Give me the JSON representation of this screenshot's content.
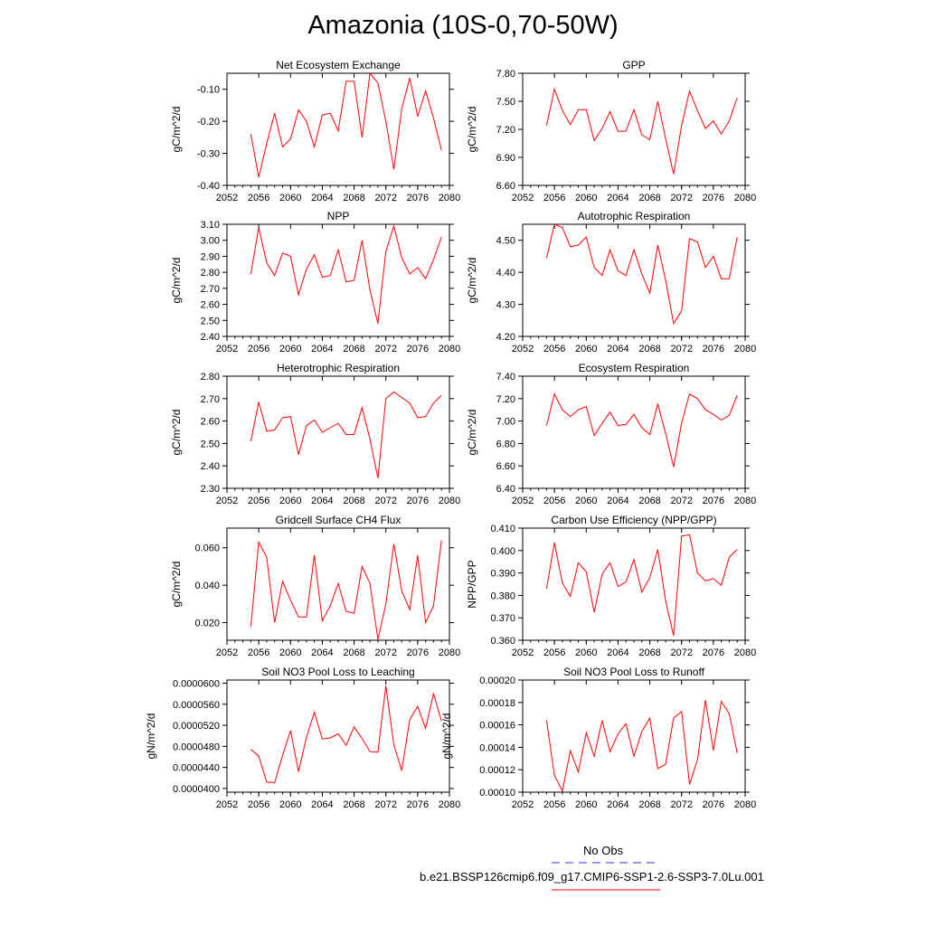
{
  "title": "Amazonia (10S-0,70-50W)",
  "legend": {
    "obs_label": "No Obs",
    "obs_color": "#3333cc",
    "case_label": "b.e21.BSSP126cmip6.f09_g17.CMIP6-SSP1-2.6-SSP3-7.0Lu.001",
    "case_color": "#ff0000"
  },
  "chart_data": [
    {
      "type": "line",
      "title": "Net Ecosystem Exchange",
      "ylabel": "gC/m^2/d",
      "xlim": [
        2052,
        2080
      ],
      "ylim": [
        -0.4,
        -0.05
      ],
      "xticks": [
        "2052",
        "2056",
        "2060",
        "2064",
        "2068",
        "2072",
        "2076",
        "2080"
      ],
      "yticks": [
        "-0.40",
        "-0.30",
        "-0.20",
        "-0.10"
      ],
      "x": [
        2055,
        2056,
        2057,
        2058,
        2059,
        2060,
        2061,
        2062,
        2063,
        2064,
        2065,
        2066,
        2067,
        2068,
        2069,
        2070,
        2071,
        2072,
        2073,
        2074,
        2075,
        2076,
        2077,
        2078,
        2079
      ],
      "series": [
        {
          "color": "#ff0000",
          "values": [
            -0.24,
            -0.375,
            -0.27,
            -0.175,
            -0.28,
            -0.255,
            -0.165,
            -0.2,
            -0.28,
            -0.18,
            -0.175,
            -0.23,
            -0.075,
            -0.075,
            -0.25,
            -0.05,
            -0.08,
            -0.2,
            -0.35,
            -0.16,
            -0.065,
            -0.185,
            -0.105,
            -0.19,
            -0.29
          ]
        }
      ]
    },
    {
      "type": "line",
      "title": "GPP",
      "ylabel": "gC/m^2/d",
      "xlim": [
        2052,
        2080
      ],
      "ylim": [
        6.6,
        7.8
      ],
      "xticks": [
        "2052",
        "2056",
        "2060",
        "2064",
        "2068",
        "2072",
        "2076",
        "2080"
      ],
      "yticks": [
        "6.60",
        "6.90",
        "7.20",
        "7.50",
        "7.80"
      ],
      "x": [
        2055,
        2056,
        2057,
        2058,
        2059,
        2060,
        2061,
        2062,
        2063,
        2064,
        2065,
        2066,
        2067,
        2068,
        2069,
        2070,
        2071,
        2072,
        2073,
        2074,
        2075,
        2076,
        2077,
        2078,
        2079
      ],
      "series": [
        {
          "color": "#ff0000",
          "values": [
            7.24,
            7.63,
            7.4,
            7.25,
            7.41,
            7.41,
            7.08,
            7.21,
            7.39,
            7.18,
            7.18,
            7.41,
            7.14,
            7.09,
            7.5,
            7.1,
            6.72,
            7.24,
            7.61,
            7.4,
            7.21,
            7.29,
            7.15,
            7.29,
            7.54
          ]
        }
      ]
    },
    {
      "type": "line",
      "title": "NPP",
      "ylabel": "gC/m^2/d",
      "xlim": [
        2052,
        2080
      ],
      "ylim": [
        2.4,
        3.1
      ],
      "xticks": [
        "2052",
        "2056",
        "2060",
        "2064",
        "2068",
        "2072",
        "2076",
        "2080"
      ],
      "yticks": [
        "2.40",
        "2.50",
        "2.60",
        "2.70",
        "2.80",
        "2.90",
        "3.00",
        "3.10"
      ],
      "x": [
        2055,
        2056,
        2057,
        2058,
        2059,
        2060,
        2061,
        2062,
        2063,
        2064,
        2065,
        2066,
        2067,
        2068,
        2069,
        2070,
        2071,
        2072,
        2073,
        2074,
        2075,
        2076,
        2077,
        2078,
        2079
      ],
      "series": [
        {
          "color": "#ff0000",
          "values": [
            2.79,
            3.08,
            2.86,
            2.78,
            2.92,
            2.9,
            2.66,
            2.82,
            2.91,
            2.77,
            2.78,
            2.94,
            2.74,
            2.75,
            3.0,
            2.69,
            2.48,
            2.93,
            3.09,
            2.89,
            2.79,
            2.83,
            2.76,
            2.88,
            3.02
          ]
        }
      ]
    },
    {
      "type": "line",
      "title": "Autotrophic Respiration",
      "ylabel": "gC/m^2/d",
      "xlim": [
        2052,
        2080
      ],
      "ylim": [
        4.2,
        4.55
      ],
      "xticks": [
        "2052",
        "2056",
        "2060",
        "2064",
        "2068",
        "2072",
        "2076",
        "2080"
      ],
      "yticks": [
        "4.20",
        "4.30",
        "4.40",
        "4.50"
      ],
      "x": [
        2055,
        2056,
        2057,
        2058,
        2059,
        2060,
        2061,
        2062,
        2063,
        2064,
        2065,
        2066,
        2067,
        2068,
        2069,
        2070,
        2071,
        2072,
        2073,
        2074,
        2075,
        2076,
        2077,
        2078,
        2079
      ],
      "series": [
        {
          "color": "#ff0000",
          "values": [
            4.445,
            4.55,
            4.54,
            4.48,
            4.485,
            4.51,
            4.415,
            4.39,
            4.47,
            4.405,
            4.39,
            4.47,
            4.395,
            4.335,
            4.485,
            4.375,
            4.24,
            4.28,
            4.505,
            4.495,
            4.415,
            4.45,
            4.38,
            4.38,
            4.51
          ]
        }
      ]
    },
    {
      "type": "line",
      "title": "Heterotrophic Respiration",
      "ylabel": "gC/m^2/d",
      "xlim": [
        2052,
        2080
      ],
      "ylim": [
        2.3,
        2.8
      ],
      "xticks": [
        "2052",
        "2056",
        "2060",
        "2064",
        "2068",
        "2072",
        "2076",
        "2080"
      ],
      "yticks": [
        "2.30",
        "2.40",
        "2.50",
        "2.60",
        "2.70",
        "2.80"
      ],
      "x": [
        2055,
        2056,
        2057,
        2058,
        2059,
        2060,
        2061,
        2062,
        2063,
        2064,
        2065,
        2066,
        2067,
        2068,
        2069,
        2070,
        2071,
        2072,
        2073,
        2074,
        2075,
        2076,
        2077,
        2078,
        2079
      ],
      "series": [
        {
          "color": "#ff0000",
          "values": [
            2.51,
            2.685,
            2.555,
            2.56,
            2.615,
            2.62,
            2.45,
            2.58,
            2.605,
            2.55,
            2.57,
            2.59,
            2.54,
            2.54,
            2.66,
            2.52,
            2.345,
            2.7,
            2.73,
            2.705,
            2.68,
            2.615,
            2.62,
            2.68,
            2.715
          ]
        }
      ]
    },
    {
      "type": "line",
      "title": "Ecosystem Respiration",
      "ylabel": "gC/m^2/d",
      "xlim": [
        2052,
        2080
      ],
      "ylim": [
        6.4,
        7.4
      ],
      "xticks": [
        "2052",
        "2056",
        "2060",
        "2064",
        "2068",
        "2072",
        "2076",
        "2080"
      ],
      "yticks": [
        "6.40",
        "6.60",
        "6.80",
        "7.00",
        "7.20",
        "7.40"
      ],
      "x": [
        2055,
        2056,
        2057,
        2058,
        2059,
        2060,
        2061,
        2062,
        2063,
        2064,
        2065,
        2066,
        2067,
        2068,
        2069,
        2070,
        2071,
        2072,
        2073,
        2074,
        2075,
        2076,
        2077,
        2078,
        2079
      ],
      "series": [
        {
          "color": "#ff0000",
          "values": [
            6.96,
            7.24,
            7.1,
            7.04,
            7.1,
            7.13,
            6.87,
            6.98,
            7.08,
            6.96,
            6.97,
            7.06,
            6.94,
            6.88,
            7.15,
            6.89,
            6.59,
            6.98,
            7.24,
            7.2,
            7.1,
            7.06,
            7.01,
            7.05,
            7.23
          ]
        }
      ]
    },
    {
      "type": "line",
      "title": "Gridcell Surface CH4 Flux",
      "ylabel": "gC/m^2/d",
      "xlim": [
        2052,
        2080
      ],
      "ylim": [
        0.0106,
        0.0705
      ],
      "xticks": [
        "2052",
        "2056",
        "2060",
        "2064",
        "2068",
        "2072",
        "2076",
        "2080"
      ],
      "yticks": [
        "0.020",
        "0.040",
        "0.060"
      ],
      "yticksAt": [
        0.02,
        0.04,
        0.06
      ],
      "x": [
        2055,
        2056,
        2057,
        2058,
        2059,
        2060,
        2061,
        2062,
        2063,
        2064,
        2065,
        2066,
        2067,
        2068,
        2069,
        2070,
        2071,
        2072,
        2073,
        2074,
        2075,
        2076,
        2077,
        2078,
        2079
      ],
      "series": [
        {
          "color": "#ff0000",
          "values": [
            0.018,
            0.063,
            0.055,
            0.02,
            0.042,
            0.032,
            0.023,
            0.023,
            0.056,
            0.021,
            0.029,
            0.041,
            0.026,
            0.025,
            0.05,
            0.041,
            0.011,
            0.03,
            0.062,
            0.037,
            0.027,
            0.056,
            0.02,
            0.029,
            0.064
          ]
        }
      ]
    },
    {
      "type": "line",
      "title": "Carbon Use Efficiency (NPP/GPP)",
      "ylabel": "NPP/GPP",
      "xlim": [
        2052,
        2080
      ],
      "ylim": [
        0.36,
        0.41
      ],
      "xticks": [
        "2052",
        "2056",
        "2060",
        "2064",
        "2068",
        "2072",
        "2076",
        "2080"
      ],
      "yticks": [
        "0.360",
        "0.370",
        "0.380",
        "0.390",
        "0.400",
        "0.410"
      ],
      "x": [
        2055,
        2056,
        2057,
        2058,
        2059,
        2060,
        2061,
        2062,
        2063,
        2064,
        2065,
        2066,
        2067,
        2068,
        2069,
        2070,
        2071,
        2072,
        2073,
        2074,
        2075,
        2076,
        2077,
        2078,
        2079
      ],
      "series": [
        {
          "color": "#ff0000",
          "values": [
            0.383,
            0.4035,
            0.3855,
            0.3795,
            0.3945,
            0.3905,
            0.3725,
            0.3895,
            0.3945,
            0.384,
            0.386,
            0.396,
            0.3815,
            0.388,
            0.4005,
            0.3775,
            0.362,
            0.4065,
            0.407,
            0.39,
            0.3865,
            0.3875,
            0.3845,
            0.397,
            0.4005
          ]
        }
      ]
    },
    {
      "type": "line",
      "title": "Soil NO3 Pool Loss to Leaching",
      "ylabel": "gN/m^2/d",
      "xlim": [
        2052,
        2080
      ],
      "ylim": [
        3.93e-05,
        6.06e-05
      ],
      "xticks": [
        "2052",
        "2056",
        "2060",
        "2064",
        "2068",
        "2072",
        "2076",
        "2080"
      ],
      "yticks": [
        "0.0000400",
        "0.0000440",
        "0.0000480",
        "0.0000520",
        "0.0000560",
        "0.0000600"
      ],
      "yticksAt": [
        4e-05,
        4.4e-05,
        4.8e-05,
        5.2e-05,
        5.6e-05,
        6e-05
      ],
      "x": [
        2055,
        2056,
        2057,
        2058,
        2059,
        2060,
        2061,
        2062,
        2063,
        2064,
        2065,
        2066,
        2067,
        2068,
        2069,
        2070,
        2071,
        2072,
        2073,
        2074,
        2075,
        2076,
        2077,
        2078,
        2079
      ],
      "series": [
        {
          "color": "#ff0000",
          "values": [
            4.74e-05,
            4.62e-05,
            4.12e-05,
            4.11e-05,
            4.63e-05,
            5.1e-05,
            4.32e-05,
            4.97e-05,
            5.45e-05,
            4.94e-05,
            4.96e-05,
            5.04e-05,
            4.82e-05,
            5.17e-05,
            4.95e-05,
            4.7e-05,
            4.69e-05,
            5.95e-05,
            4.83e-05,
            4.34e-05,
            5.31e-05,
            5.56e-05,
            5.14e-05,
            5.8e-05,
            5.28e-05
          ]
        }
      ]
    },
    {
      "type": "line",
      "title": "Soil NO3 Pool Loss to Runoff",
      "ylabel": "gN/m^2/d",
      "xlim": [
        2052,
        2080
      ],
      "ylim": [
        0.0001,
        0.0002
      ],
      "xticks": [
        "2052",
        "2056",
        "2060",
        "2064",
        "2068",
        "2072",
        "2076",
        "2080"
      ],
      "yticks": [
        "0.00010",
        "0.00012",
        "0.00014",
        "0.00016",
        "0.00018",
        "0.00020"
      ],
      "yticksAt": [
        0.0001,
        0.00012,
        0.00014,
        0.00016,
        0.00018,
        0.0002
      ],
      "x": [
        2055,
        2056,
        2057,
        2058,
        2059,
        2060,
        2061,
        2062,
        2063,
        2064,
        2065,
        2066,
        2067,
        2068,
        2069,
        2070,
        2071,
        2072,
        2073,
        2074,
        2075,
        2076,
        2077,
        2078,
        2079
      ],
      "series": [
        {
          "color": "#ff0000",
          "values": [
            0.000164,
            0.000115,
            0.000101,
            0.000137,
            0.000118,
            0.000153,
            0.000132,
            0.000164,
            0.000136,
            0.000152,
            0.000161,
            0.000132,
            0.000154,
            0.000166,
            0.000121,
            0.000125,
            0.000166,
            0.000172,
            0.000107,
            0.000129,
            0.000182,
            0.000137,
            0.000181,
            0.00017,
            0.000135
          ]
        }
      ]
    }
  ]
}
